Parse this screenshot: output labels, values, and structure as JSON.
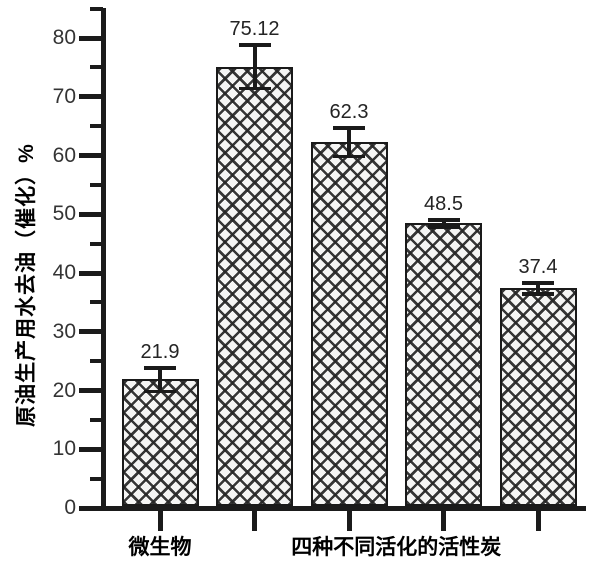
{
  "chart_data": {
    "type": "bar",
    "title": "",
    "xlabel": "",
    "ylabel": "原油生产用水去油（催化）%",
    "ylim": [
      0,
      85
    ],
    "ytick_major": [
      0,
      10,
      20,
      30,
      40,
      50,
      60,
      70,
      80
    ],
    "ytick_minor_step": 5,
    "grid": false,
    "legend": false,
    "bar_pattern": "crosshatch",
    "bars": [
      {
        "value": 21.9,
        "label": "21.9",
        "error": 2.0
      },
      {
        "value": 75.12,
        "label": "75.12",
        "error": 3.7
      },
      {
        "value": 62.3,
        "label": "62.3",
        "error": 2.4
      },
      {
        "value": 48.5,
        "label": "48.5",
        "error": 0.6
      },
      {
        "value": 37.4,
        "label": "37.4",
        "error": 0.9
      }
    ],
    "x_group_labels": [
      {
        "text": "微生物",
        "bars": [
          0
        ]
      },
      {
        "text": "四种不同活化的活性炭",
        "bars": [
          1,
          2,
          3,
          4
        ]
      }
    ],
    "colors": {
      "axis": "#1b1b1b",
      "tick_label": "#343434",
      "value_label": "#242424",
      "bar_fill": "#f5f5f4",
      "hatch": "#262626",
      "background": "#ffffff"
    }
  }
}
